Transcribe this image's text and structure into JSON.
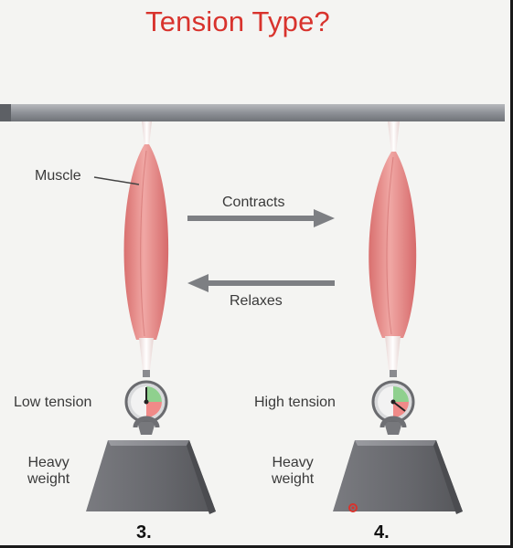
{
  "title": "Tension Type?",
  "labels": {
    "muscle": "Muscle",
    "contracts": "Contracts",
    "relaxes": "Relaxes",
    "low_tension": "Low tension",
    "high_tension": "High tension",
    "heavy_weight_left": "Heavy\nweight",
    "heavy_weight_right": "Heavy\nweight"
  },
  "panels": [
    {
      "number": "3.",
      "tension": "Low tension"
    },
    {
      "number": "4.",
      "tension": "High tension"
    }
  ],
  "colors": {
    "title": "#d8332d",
    "muscle": "#e58a88",
    "bar": "#8e9197",
    "weight": "#6b6c70",
    "gauge_green": "#6fbf73",
    "gauge_red": "#e26c6c"
  }
}
